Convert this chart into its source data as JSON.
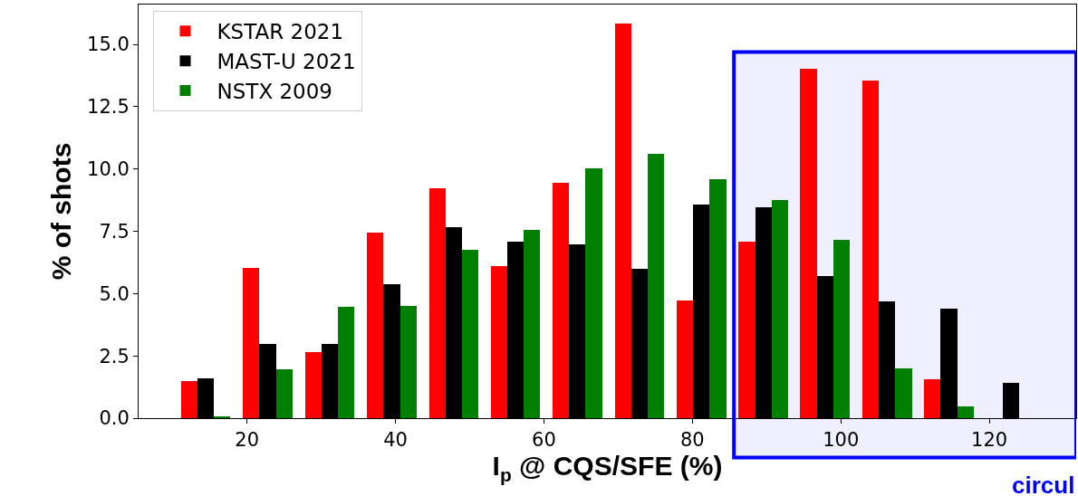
{
  "chart_data": {
    "type": "histogram",
    "xlabel": "I$_{p}$ @ CQS/SFE (%)",
    "ylabel": "% of shots",
    "bins": [
      10.3,
      18.6,
      27.0,
      35.3,
      43.7,
      52.0,
      60.3,
      68.7,
      77.0,
      85.4,
      93.7,
      102.0,
      110.4,
      118.7,
      127.1
    ],
    "series": [
      {
        "name": "KSTAR 2021",
        "color": "#ff0000",
        "values": [
          1.48,
          6.02,
          2.64,
          7.45,
          9.24,
          6.11,
          9.43,
          15.85,
          4.74,
          7.1,
          14.01,
          13.56,
          1.55,
          0
        ]
      },
      {
        "name": "MAST-U 2021",
        "color": "#000000",
        "values": [
          1.59,
          2.99,
          2.99,
          5.38,
          7.67,
          7.07,
          6.98,
          5.98,
          8.58,
          8.48,
          5.7,
          4.69,
          4.41,
          1.4
        ]
      },
      {
        "name": "NSTX 2009",
        "color": "#008000",
        "values": [
          0.05,
          1.97,
          4.48,
          4.51,
          6.76,
          7.56,
          10.01,
          10.59,
          9.6,
          8.75,
          7.15,
          2.01,
          0.47,
          0
        ]
      }
    ],
    "xlim": [
      5.4,
      131.7
    ],
    "xticks": [
      20,
      40,
      60,
      80,
      100,
      120
    ],
    "ylim": [
      0,
      16.6
    ],
    "yticks": [
      {
        "value": 0,
        "label": "0.0"
      },
      {
        "value": 2.5,
        "label": "2.5"
      },
      {
        "value": 5,
        "label": "5.0"
      },
      {
        "value": 7.5,
        "label": "7.5"
      },
      {
        "value": 10,
        "label": "10.0"
      },
      {
        "value": 12.5,
        "label": "12.5"
      },
      {
        "value": 15,
        "label": "15.0"
      }
    ],
    "bands": [
      {
        "axis": "x",
        "from": 85.6,
        "to": 131.7,
        "color": "#0000ff"
      }
    ],
    "annotations": [
      "circul"
    ],
    "grid": false,
    "legend": "top left"
  }
}
